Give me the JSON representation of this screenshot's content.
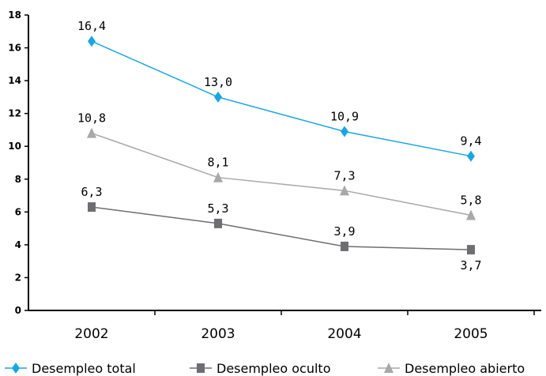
{
  "chart_data": {
    "type": "line",
    "categories": [
      "2002",
      "2003",
      "2004",
      "2005"
    ],
    "ylim": [
      0,
      18
    ],
    "yticks": [
      "0",
      "2",
      "4",
      "6",
      "8",
      "10",
      "12",
      "14",
      "16",
      "18"
    ],
    "grid": false,
    "legend_position": "bottom",
    "series": [
      {
        "name": "Desempleo total",
        "values": [
          16.4,
          13.0,
          10.9,
          9.4
        ],
        "labels": [
          "16,4",
          "13,0",
          "10,9",
          "9,4"
        ],
        "color": "#1aa6e0",
        "marker": "diamond"
      },
      {
        "name": "Desempleo oculto",
        "values": [
          6.3,
          5.3,
          3.9,
          3.7
        ],
        "labels": [
          "6,3",
          "5,3",
          "3,9",
          "3,7"
        ],
        "color": "#6e6e72",
        "marker": "square"
      },
      {
        "name": "Desempleo abierto",
        "values": [
          10.8,
          8.1,
          7.3,
          5.8
        ],
        "labels": [
          "10,8",
          "8,1",
          "7,3",
          "5,8"
        ],
        "color": "#a8a8ab",
        "marker": "triangle"
      }
    ]
  }
}
